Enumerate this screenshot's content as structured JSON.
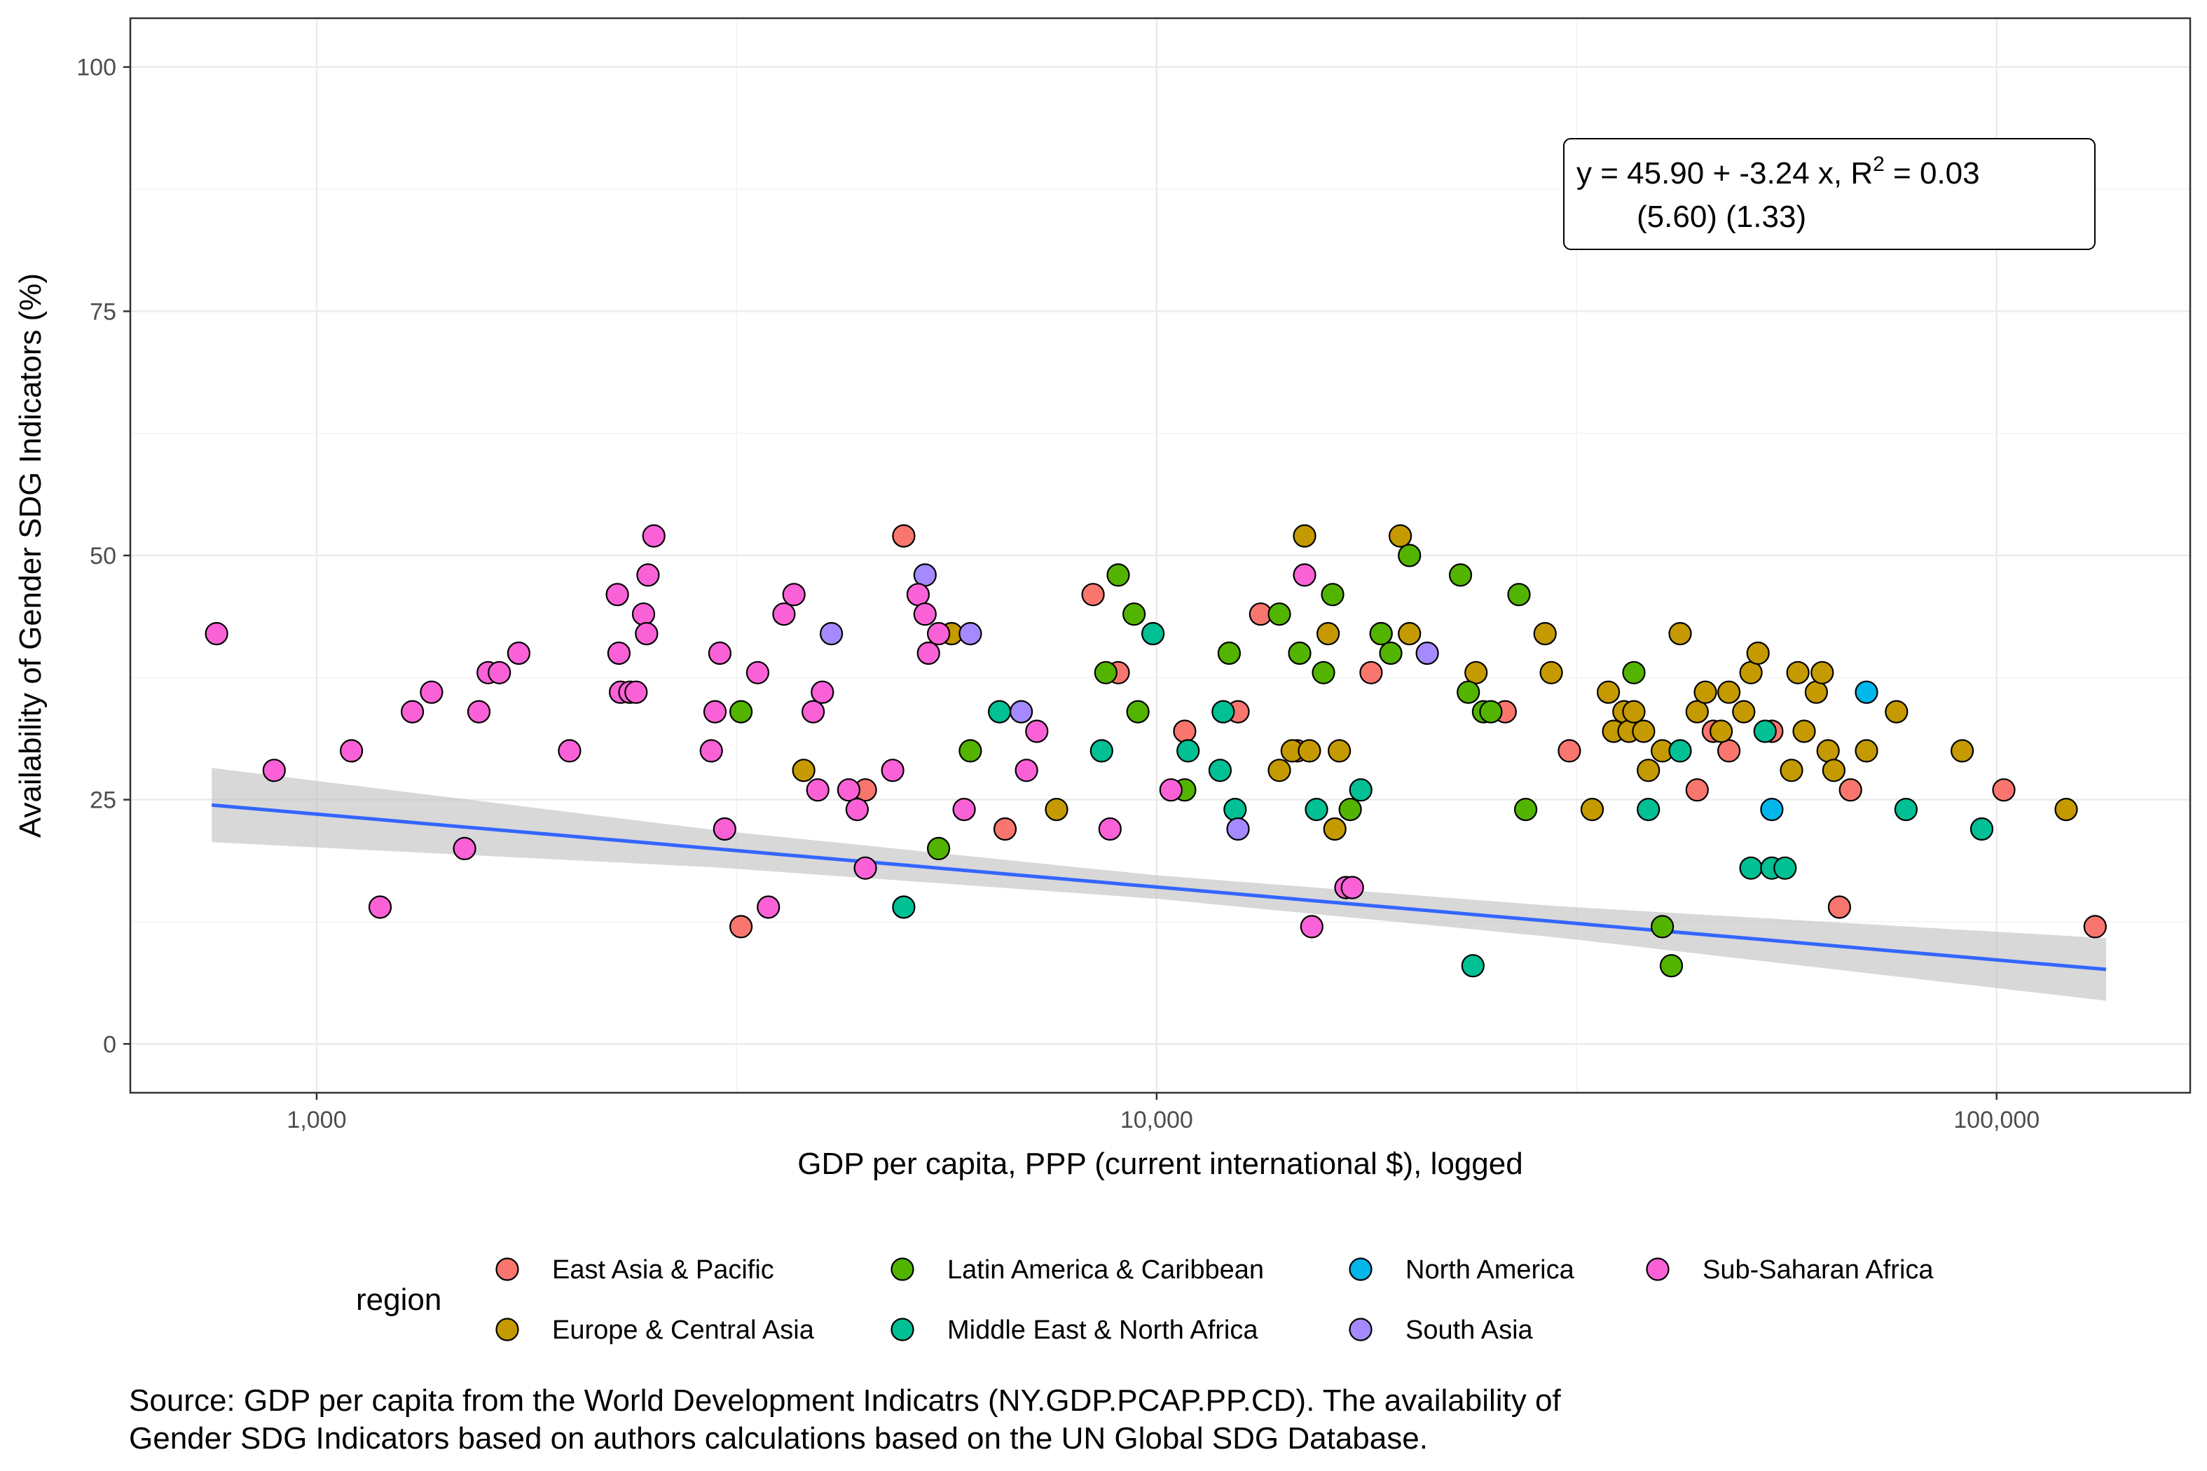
{
  "chart_data": {
    "type": "scatter",
    "xlabel": "GDP per capita, PPP (current international $), logged",
    "ylabel": "Availability of Gender SDG Indicators (%)",
    "x_scale": "log10",
    "xlim": [
      600,
      170000
    ],
    "ylim": [
      -5,
      105
    ],
    "x_ticks": [
      1000,
      10000,
      100000
    ],
    "x_tick_labels": [
      "1,000",
      "10,000",
      "100,000"
    ],
    "y_ticks": [
      0,
      25,
      50,
      75,
      100
    ],
    "y_tick_labels": [
      "0",
      "25",
      "50",
      "75",
      "100"
    ],
    "grid": true,
    "legend": {
      "title": "region",
      "placement": "bottom",
      "entries": [
        {
          "name": "East Asia & Pacific",
          "color": "#F8766D"
        },
        {
          "name": "Europe & Central Asia",
          "color": "#C49A00"
        },
        {
          "name": "Latin America & Caribbean",
          "color": "#53B400"
        },
        {
          "name": "Middle East & North Africa",
          "color": "#00C094"
        },
        {
          "name": "North America",
          "color": "#00B6EB"
        },
        {
          "name": "South Asia",
          "color": "#A58AFF"
        },
        {
          "name": "Sub-Saharan Africa",
          "color": "#FB61D7"
        }
      ]
    },
    "annotation": {
      "line1_prefix": "y = 45.90 + -3.24 x, R",
      "line1_sup": "2",
      "line1_suffix": " = 0.03",
      "line2": "(5.60) (1.33)"
    },
    "regression": {
      "intercept": 45.9,
      "slope": -3.24,
      "x_range": [
        750,
        135000
      ],
      "se_band": [
        [
          750,
          3.8
        ],
        [
          3000,
          1.9
        ],
        [
          10000,
          1.2
        ],
        [
          30000,
          1.6
        ],
        [
          135000,
          3.2
        ]
      ],
      "color": "#3366FF",
      "band_color": "#BEBEBE"
    },
    "series": [
      {
        "name": "East Asia & Pacific",
        "color": "#F8766D",
        "points": [
          [
            3200,
            12
          ],
          [
            4500,
            26
          ],
          [
            5000,
            52
          ],
          [
            6600,
            22
          ],
          [
            8400,
            46
          ],
          [
            9000,
            38
          ],
          [
            10800,
            32
          ],
          [
            12500,
            34
          ],
          [
            13300,
            44
          ],
          [
            14700,
            30
          ],
          [
            18000,
            38
          ],
          [
            26000,
            34
          ],
          [
            31000,
            30
          ],
          [
            44000,
            26
          ],
          [
            46000,
            32
          ],
          [
            48000,
            30
          ],
          [
            54000,
            32
          ],
          [
            65000,
            14
          ],
          [
            67000,
            26
          ],
          [
            102000,
            26
          ],
          [
            131000,
            12
          ]
        ]
      },
      {
        "name": "Europe & Central Asia",
        "color": "#C49A00",
        "points": [
          [
            3800,
            28
          ],
          [
            5700,
            42
          ],
          [
            7600,
            24
          ],
          [
            14000,
            28
          ],
          [
            14500,
            30
          ],
          [
            15000,
            52
          ],
          [
            15200,
            30
          ],
          [
            16000,
            42
          ],
          [
            16300,
            22
          ],
          [
            16500,
            30
          ],
          [
            18500,
            42
          ],
          [
            19500,
            52
          ],
          [
            20000,
            42
          ],
          [
            24000,
            38
          ],
          [
            29000,
            42
          ],
          [
            29500,
            38
          ],
          [
            33000,
            24
          ],
          [
            34500,
            36
          ],
          [
            35000,
            32
          ],
          [
            36000,
            34
          ],
          [
            36500,
            32
          ],
          [
            37000,
            34
          ],
          [
            38000,
            32
          ],
          [
            38500,
            28
          ],
          [
            40000,
            30
          ],
          [
            42000,
            42
          ],
          [
            44000,
            34
          ],
          [
            45000,
            36
          ],
          [
            47000,
            32
          ],
          [
            48000,
            36
          ],
          [
            50000,
            34
          ],
          [
            51000,
            38
          ],
          [
            52000,
            40
          ],
          [
            57000,
            28
          ],
          [
            58000,
            38
          ],
          [
            59000,
            32
          ],
          [
            61000,
            36
          ],
          [
            62000,
            38
          ],
          [
            63000,
            30
          ],
          [
            64000,
            28
          ],
          [
            70000,
            30
          ],
          [
            76000,
            34
          ],
          [
            91000,
            30
          ],
          [
            121000,
            24
          ]
        ]
      },
      {
        "name": "Latin America & Caribbean",
        "color": "#53B400",
        "points": [
          [
            3200,
            34
          ],
          [
            5500,
            20
          ],
          [
            6000,
            30
          ],
          [
            8700,
            38
          ],
          [
            9000,
            48
          ],
          [
            9400,
            44
          ],
          [
            9500,
            34
          ],
          [
            10800,
            26
          ],
          [
            12200,
            40
          ],
          [
            14000,
            44
          ],
          [
            14800,
            40
          ],
          [
            15800,
            38
          ],
          [
            16200,
            46
          ],
          [
            17000,
            24
          ],
          [
            18500,
            42
          ],
          [
            19000,
            40
          ],
          [
            20000,
            50
          ],
          [
            23000,
            48
          ],
          [
            23500,
            36
          ],
          [
            24500,
            34
          ],
          [
            25000,
            34
          ],
          [
            27000,
            46
          ],
          [
            27500,
            24
          ],
          [
            37000,
            38
          ],
          [
            40000,
            12
          ],
          [
            41000,
            8
          ]
        ]
      },
      {
        "name": "Middle East & North Africa",
        "color": "#00C094",
        "points": [
          [
            5000,
            14
          ],
          [
            6500,
            34
          ],
          [
            8600,
            30
          ],
          [
            9900,
            42
          ],
          [
            10900,
            30
          ],
          [
            11900,
            28
          ],
          [
            12000,
            34
          ],
          [
            12400,
            24
          ],
          [
            15500,
            24
          ],
          [
            17500,
            26
          ],
          [
            23800,
            8
          ],
          [
            38500,
            24
          ],
          [
            42000,
            30
          ],
          [
            51000,
            18
          ],
          [
            53000,
            32
          ],
          [
            54000,
            18
          ],
          [
            56000,
            18
          ],
          [
            78000,
            24
          ],
          [
            96000,
            22
          ]
        ]
      },
      {
        "name": "North America",
        "color": "#00B6EB",
        "points": [
          [
            54000,
            24
          ],
          [
            70000,
            36
          ]
        ]
      },
      {
        "name": "South Asia",
        "color": "#A58AFF",
        "points": [
          [
            4100,
            42
          ],
          [
            5300,
            48
          ],
          [
            6000,
            42
          ],
          [
            6900,
            34
          ],
          [
            12500,
            22
          ],
          [
            21000,
            40
          ]
        ]
      },
      {
        "name": "Sub-Saharan Africa",
        "color": "#FB61D7",
        "points": [
          [
            760,
            42
          ],
          [
            890,
            28
          ],
          [
            1100,
            30
          ],
          [
            1190,
            14
          ],
          [
            1300,
            34
          ],
          [
            1370,
            36
          ],
          [
            1500,
            20
          ],
          [
            1560,
            34
          ],
          [
            1600,
            38
          ],
          [
            1650,
            38
          ],
          [
            1740,
            40
          ],
          [
            2000,
            30
          ],
          [
            2280,
            46
          ],
          [
            2290,
            40
          ],
          [
            2300,
            36
          ],
          [
            2360,
            36
          ],
          [
            2400,
            36
          ],
          [
            2450,
            44
          ],
          [
            2470,
            42
          ],
          [
            2480,
            48
          ],
          [
            2520,
            52
          ],
          [
            2950,
            30
          ],
          [
            2980,
            34
          ],
          [
            3020,
            40
          ],
          [
            3060,
            22
          ],
          [
            3350,
            38
          ],
          [
            3450,
            14
          ],
          [
            3600,
            44
          ],
          [
            3700,
            46
          ],
          [
            3900,
            34
          ],
          [
            3950,
            26
          ],
          [
            4000,
            36
          ],
          [
            4300,
            26
          ],
          [
            4400,
            24
          ],
          [
            4500,
            18
          ],
          [
            4850,
            28
          ],
          [
            5200,
            46
          ],
          [
            5300,
            44
          ],
          [
            5350,
            40
          ],
          [
            5500,
            42
          ],
          [
            5900,
            24
          ],
          [
            7000,
            28
          ],
          [
            7200,
            32
          ],
          [
            8800,
            22
          ],
          [
            10400,
            26
          ],
          [
            15000,
            48
          ],
          [
            15300,
            12
          ],
          [
            16800,
            16
          ],
          [
            17100,
            16
          ]
        ]
      }
    ],
    "caption_line1": "Source: GDP per capita from the World Development Indicatrs (NY.GDP.PCAP.PP.CD). The availability of",
    "caption_line2": "Gender SDG Indicators based on authors calculations based on the UN Global SDG Database."
  }
}
